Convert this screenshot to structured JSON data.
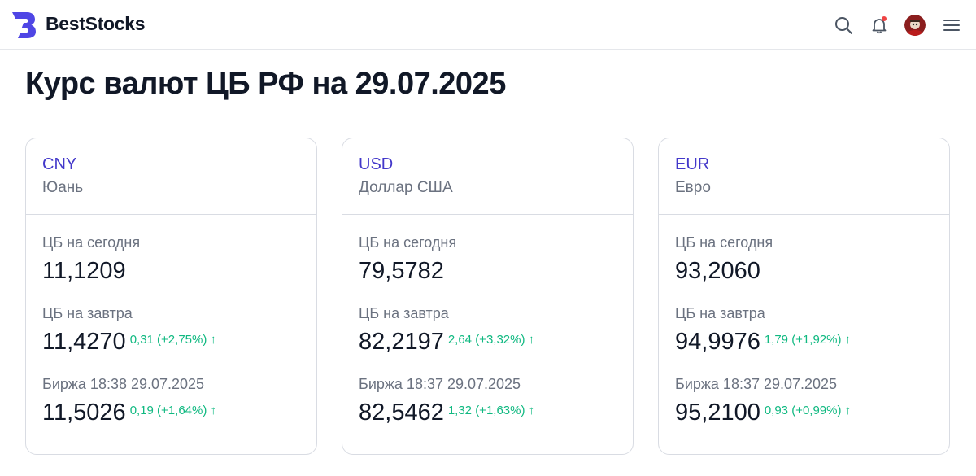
{
  "header": {
    "brand": "BestStocks",
    "icons": {
      "logo": "beststocks-logo",
      "search": "search-icon",
      "bell": "bell-icon",
      "avatar": "avatar",
      "menu": "hamburger-menu-icon"
    },
    "colors": {
      "accent": "#4f46e5",
      "notification_dot": "#ef4444"
    }
  },
  "page": {
    "title": "Курс валют ЦБ РФ на 29.07.2025"
  },
  "labels": {
    "today": "ЦБ на сегодня",
    "tomorrow": "ЦБ на завтра"
  },
  "colors": {
    "positive": "#10b981",
    "code": "#4338ca"
  },
  "cards": [
    {
      "code": "CNY",
      "name": "Юань",
      "today": "11,1209",
      "tomorrow": "11,4270",
      "tomorrow_change": "0,31 (+2,75%) ↑",
      "exchange_label": "Биржа 18:38 29.07.2025",
      "exchange": "11,5026",
      "exchange_change": "0,19 (+1,64%) ↑"
    },
    {
      "code": "USD",
      "name": "Доллар США",
      "today": "79,5782",
      "tomorrow": "82,2197",
      "tomorrow_change": "2,64 (+3,32%) ↑",
      "exchange_label": "Биржа 18:37 29.07.2025",
      "exchange": "82,5462",
      "exchange_change": "1,32 (+1,63%) ↑"
    },
    {
      "code": "EUR",
      "name": "Евро",
      "today": "93,2060",
      "tomorrow": "94,9976",
      "tomorrow_change": "1,79 (+1,92%) ↑",
      "exchange_label": "Биржа 18:37 29.07.2025",
      "exchange": "95,2100",
      "exchange_change": "0,93 (+0,99%) ↑"
    }
  ]
}
